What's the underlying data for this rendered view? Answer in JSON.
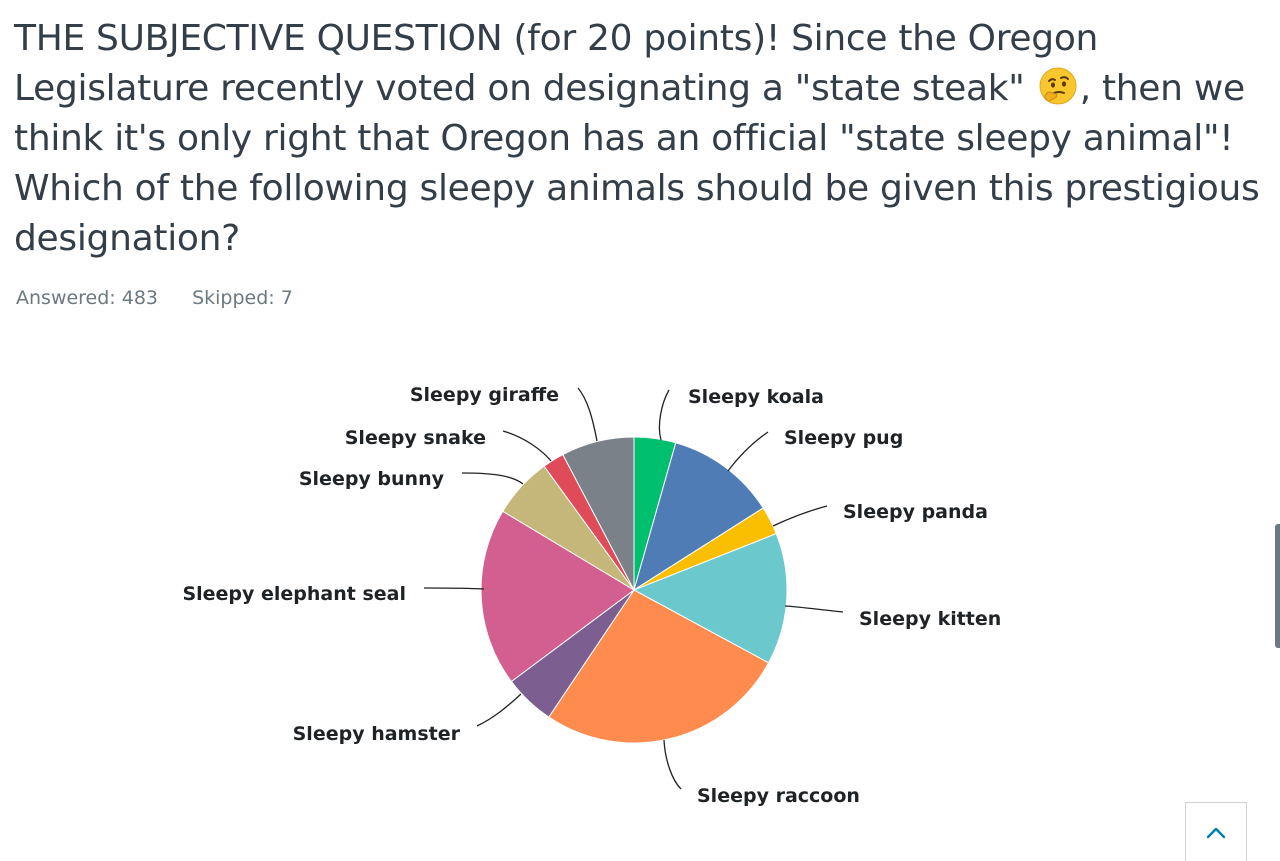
{
  "question": {
    "text_before_emoji": "THE SUBJECTIVE QUESTION (for 20 points)! Since the Oregon Legislature recently voted on designating a \"state steak\" ",
    "emoji_icon": "thinking-face-emoji",
    "text_after_emoji": ", then we think it's only right that Oregon has an official \"state sleepy animal\"! Which of the following sleepy animals should be given this prestigious designation?"
  },
  "stats": {
    "answered_label": "Answered: 483",
    "skipped_label": "Skipped: 7"
  },
  "chart_data": {
    "type": "pie",
    "start": "12 o'clock, clockwise",
    "legend": "none (direct labels with leader lines)",
    "slices": [
      {
        "label": "Sleepy koala",
        "value": 4.4,
        "color": "#00bf6f"
      },
      {
        "label": "Sleepy pug",
        "value": 11.6,
        "color": "#507cb6"
      },
      {
        "label": "Sleepy panda",
        "value": 3.0,
        "color": "#f9be00"
      },
      {
        "label": "Sleepy kitten",
        "value": 13.9,
        "color": "#6bc8cd"
      },
      {
        "label": "Sleepy raccoon",
        "value": 26.5,
        "color": "#ff8b4f"
      },
      {
        "label": "Sleepy hamster",
        "value": 5.4,
        "color": "#7d5e90"
      },
      {
        "label": "Sleepy elephant seal",
        "value": 18.8,
        "color": "#d25f90"
      },
      {
        "label": "Sleepy bunny",
        "value": 6.4,
        "color": "#c4b779"
      },
      {
        "label": "Sleepy snake",
        "value": 2.3,
        "color": "#e04b5a"
      },
      {
        "label": "Sleepy giraffe",
        "value": 7.7,
        "color": "#7a8188"
      }
    ]
  },
  "back_to_top_icon": "chevron-up-icon",
  "accent_color": "#007faa"
}
